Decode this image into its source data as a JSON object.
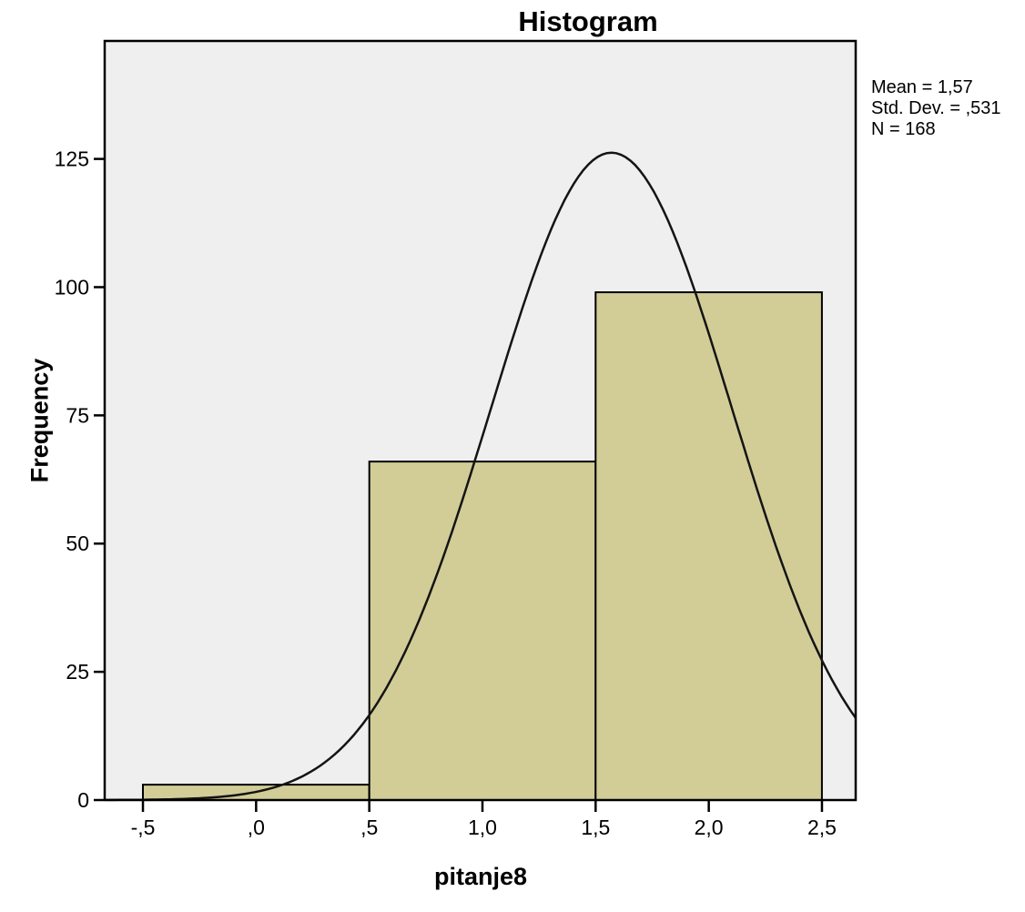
{
  "chart_data": {
    "type": "bar",
    "chart_kind": "histogram",
    "title": "Histogram",
    "xlabel": "pitanje8",
    "ylabel": "Frequency",
    "bins": [
      {
        "x0": -0.5,
        "x1": 0.5,
        "count": 3
      },
      {
        "x0": 0.5,
        "x1": 1.5,
        "count": 66
      },
      {
        "x0": 1.5,
        "x1": 2.5,
        "count": 99
      }
    ],
    "normal_curve": {
      "mean": 1.57,
      "std_dev": 0.531,
      "n": 168,
      "bin_width": 1
    },
    "x_ticks": [
      {
        "value": -0.5,
        "label": "-,5"
      },
      {
        "value": 0.0,
        "label": ",0"
      },
      {
        "value": 0.5,
        "label": ",5"
      },
      {
        "value": 1.0,
        "label": "1,0"
      },
      {
        "value": 1.5,
        "label": "1,5"
      },
      {
        "value": 2.0,
        "label": "2,0"
      },
      {
        "value": 2.5,
        "label": "2,5"
      }
    ],
    "y_ticks": [
      {
        "value": 0,
        "label": "0"
      },
      {
        "value": 25,
        "label": "25"
      },
      {
        "value": 50,
        "label": "50"
      },
      {
        "value": 75,
        "label": "75"
      },
      {
        "value": 100,
        "label": "100"
      },
      {
        "value": 125,
        "label": "125"
      }
    ],
    "xlim": [
      -0.669,
      2.649
    ],
    "ylim": [
      0,
      148
    ],
    "grid": false,
    "legend": false,
    "annotations": [
      "Mean = 1,57",
      "Std. Dev. = ,531",
      "N = 168"
    ],
    "colors": {
      "bar_fill": "#d2cd97",
      "bar_border": "#000000",
      "plot_background": "#efefef",
      "curve": "#141414",
      "frame": "#000000",
      "text": "#000000"
    }
  }
}
